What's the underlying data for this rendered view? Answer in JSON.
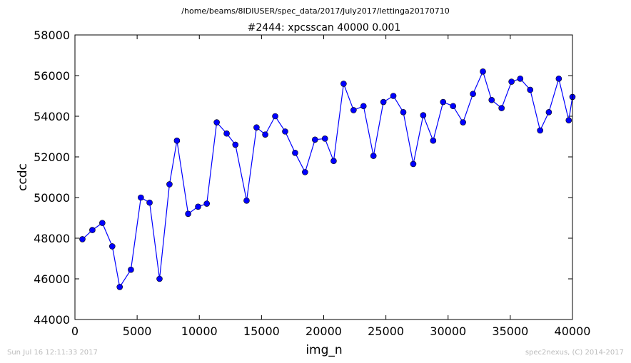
{
  "figure": {
    "suptitle": "/home/beams/8IDIUSER/spec_data/2017/July2017/lettinga20170710",
    "footer_left": "Sun Jul 16 12:11:33 2017",
    "footer_right": "spec2nexus, (C) 2014-2017"
  },
  "chart_data": {
    "type": "line",
    "title": "#2444: xpcsscan 40000 0.001",
    "xlabel": "img_n",
    "ylabel": "ccdc",
    "xlim": [
      0,
      40000
    ],
    "ylim": [
      44000,
      58000
    ],
    "x_ticks": [
      0,
      5000,
      10000,
      15000,
      20000,
      25000,
      30000,
      35000,
      40000
    ],
    "y_ticks": [
      44000,
      46000,
      48000,
      50000,
      52000,
      54000,
      56000,
      58000
    ],
    "grid": false,
    "line_color": "#0000ff",
    "marker": "circle",
    "series": [
      {
        "x": [
          600,
          1400,
          2200,
          3000,
          3600,
          4500,
          5300,
          6000,
          6800,
          7600,
          8200,
          9100,
          9900,
          10600,
          11400,
          12200,
          12900,
          13800,
          14600,
          15300,
          16100,
          16900,
          17700,
          18500,
          19300,
          20100,
          20800,
          21600,
          22400,
          23200,
          24000,
          24800,
          25600,
          26400,
          27200,
          28000,
          28800,
          29600,
          30400,
          31200,
          32000,
          32800,
          33500,
          34300,
          35100,
          35800,
          36600,
          37400,
          38100,
          38900,
          39700,
          40000
        ],
        "y": [
          47950,
          48400,
          48750,
          47600,
          45600,
          46450,
          50000,
          49750,
          46000,
          50650,
          52800,
          49200,
          49550,
          49700,
          53700,
          53150,
          52600,
          49850,
          53450,
          53100,
          54000,
          53250,
          52200,
          51250,
          52850,
          52900,
          51800,
          55600,
          54300,
          54500,
          52050,
          54700,
          55000,
          54200,
          51650,
          54050,
          52800,
          54700,
          54500,
          53700,
          55100,
          56200,
          54800,
          54400,
          55700,
          55850,
          55300,
          53300,
          54200,
          55850,
          53800,
          54950
        ]
      }
    ]
  }
}
